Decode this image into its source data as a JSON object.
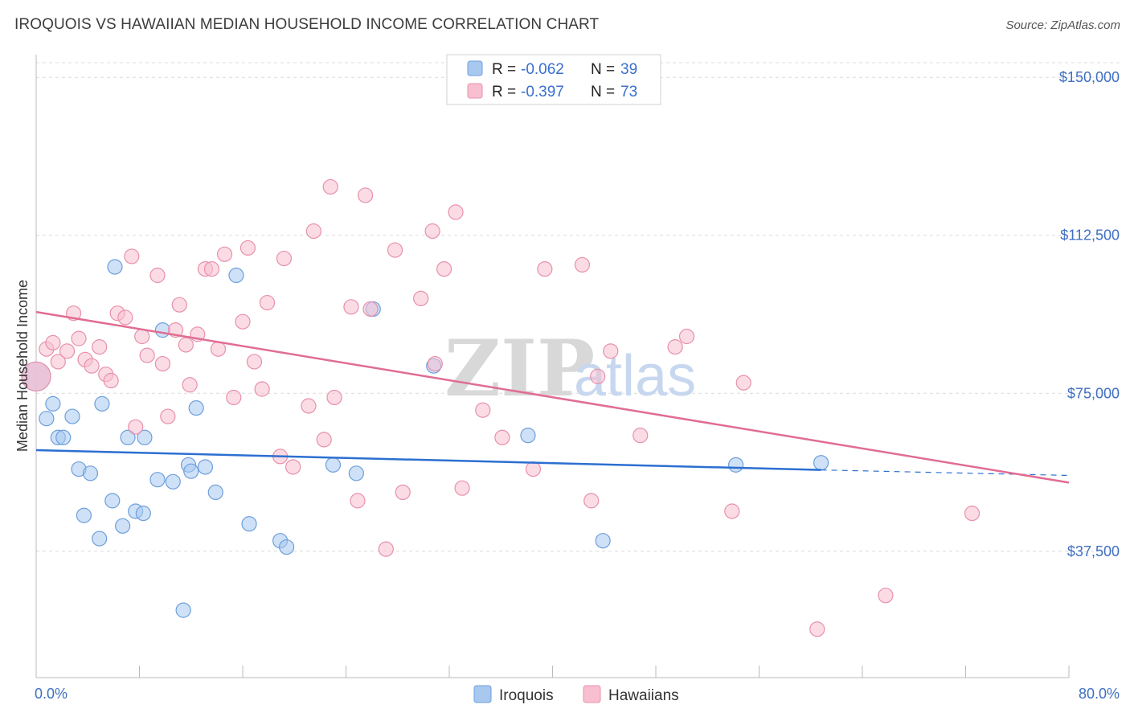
{
  "header": {
    "title": "IROQUOIS VS HAWAIIAN MEDIAN HOUSEHOLD INCOME CORRELATION CHART",
    "source": "Source: ZipAtlas.com"
  },
  "watermark": {
    "zip": "ZIP",
    "atlas": "atlas"
  },
  "colors": {
    "iroquois_fill": "#a8c8f0",
    "iroquois_stroke": "#6d9fdc",
    "iroquois_line": "#2c6fd1",
    "hawaiians_fill": "#f8bfd0",
    "hawaiians_stroke": "#e890ab",
    "hawaiians_line": "#e06d93",
    "axis_label": "#3f6fc0",
    "grid": "#dcdcdc"
  },
  "legend": {
    "rows": [
      {
        "r_label": "R = ",
        "r_value": "-0.062",
        "n_label": "N = ",
        "n_value": "39"
      },
      {
        "r_label": "R = ",
        "r_value": "-0.397",
        "n_label": "N = ",
        "n_value": "73"
      }
    ]
  },
  "chart_data": {
    "type": "scatter",
    "title": "IROQUOIS VS HAWAIIAN MEDIAN HOUSEHOLD INCOME CORRELATION CHART",
    "xlabel": "",
    "ylabel": "Median Household Income",
    "xlim": [
      0,
      80
    ],
    "ylim": [
      7500,
      155000
    ],
    "x_tick_labels": [
      "0.0%",
      "80.0%"
    ],
    "y_ticks": [
      37500,
      75000,
      112500,
      150000
    ],
    "y_tick_labels": [
      "$37,500",
      "$75,000",
      "$112,500",
      "$150,000"
    ],
    "grid": true,
    "legend_position": "top-center",
    "series": [
      {
        "name": "Iroquois",
        "r": -0.062,
        "n": 39,
        "trend": {
          "x": [
            0,
            60.8
          ],
          "y": [
            61500,
            56800
          ],
          "dashed_to": [
            80,
            55500
          ]
        },
        "points": [
          [
            0.0,
            79000
          ],
          [
            0.8,
            69000
          ],
          [
            1.3,
            72500
          ],
          [
            1.7,
            64500
          ],
          [
            2.1,
            64500
          ],
          [
            2.8,
            69500
          ],
          [
            3.3,
            57000
          ],
          [
            3.7,
            46000
          ],
          [
            4.2,
            56000
          ],
          [
            4.9,
            40500
          ],
          [
            5.1,
            72500
          ],
          [
            5.9,
            49500
          ],
          [
            6.1,
            105000
          ],
          [
            6.7,
            43500
          ],
          [
            7.1,
            64500
          ],
          [
            7.7,
            47000
          ],
          [
            8.3,
            46500
          ],
          [
            8.4,
            64500
          ],
          [
            9.4,
            54500
          ],
          [
            9.8,
            90000
          ],
          [
            10.6,
            54000
          ],
          [
            11.4,
            23500
          ],
          [
            11.8,
            58000
          ],
          [
            12.0,
            56500
          ],
          [
            12.4,
            71500
          ],
          [
            13.1,
            57500
          ],
          [
            13.9,
            51500
          ],
          [
            15.5,
            103000
          ],
          [
            16.5,
            44000
          ],
          [
            18.9,
            40000
          ],
          [
            19.4,
            38500
          ],
          [
            23.0,
            58000
          ],
          [
            24.8,
            56000
          ],
          [
            26.1,
            95000
          ],
          [
            30.8,
            81500
          ],
          [
            38.1,
            65000
          ],
          [
            43.9,
            40000
          ],
          [
            54.2,
            58000
          ],
          [
            60.8,
            58500
          ]
        ]
      },
      {
        "name": "Hawaiians",
        "r": -0.397,
        "n": 73,
        "trend": {
          "x": [
            0,
            80
          ],
          "y": [
            94300,
            53800
          ]
        },
        "points": [
          [
            0.0,
            79000
          ],
          [
            0.8,
            85500
          ],
          [
            1.3,
            87000
          ],
          [
            1.7,
            82500
          ],
          [
            2.4,
            85000
          ],
          [
            2.9,
            94000
          ],
          [
            3.3,
            88000
          ],
          [
            3.8,
            83000
          ],
          [
            4.3,
            81500
          ],
          [
            4.9,
            86000
          ],
          [
            5.4,
            79500
          ],
          [
            5.8,
            78000
          ],
          [
            6.3,
            94000
          ],
          [
            6.9,
            93000
          ],
          [
            7.4,
            107500
          ],
          [
            7.7,
            67000
          ],
          [
            8.2,
            88500
          ],
          [
            8.6,
            84000
          ],
          [
            9.4,
            103000
          ],
          [
            9.8,
            82000
          ],
          [
            10.2,
            69500
          ],
          [
            10.8,
            90000
          ],
          [
            11.1,
            96000
          ],
          [
            11.6,
            86500
          ],
          [
            11.9,
            77000
          ],
          [
            12.5,
            89000
          ],
          [
            13.1,
            104500
          ],
          [
            13.6,
            104500
          ],
          [
            14.1,
            85500
          ],
          [
            14.6,
            108000
          ],
          [
            15.3,
            74000
          ],
          [
            16.0,
            92000
          ],
          [
            16.4,
            109500
          ],
          [
            16.9,
            82500
          ],
          [
            17.5,
            76000
          ],
          [
            17.9,
            96500
          ],
          [
            18.9,
            60000
          ],
          [
            19.2,
            107000
          ],
          [
            19.9,
            57500
          ],
          [
            21.1,
            72000
          ],
          [
            21.5,
            113500
          ],
          [
            22.3,
            64000
          ],
          [
            22.8,
            124000
          ],
          [
            23.1,
            74000
          ],
          [
            24.4,
            95500
          ],
          [
            24.9,
            49500
          ],
          [
            25.5,
            122000
          ],
          [
            25.9,
            95000
          ],
          [
            27.1,
            38000
          ],
          [
            27.8,
            109000
          ],
          [
            28.4,
            51500
          ],
          [
            29.8,
            97500
          ],
          [
            30.7,
            113500
          ],
          [
            30.9,
            82000
          ],
          [
            31.6,
            104500
          ],
          [
            32.5,
            118000
          ],
          [
            33.0,
            52500
          ],
          [
            34.6,
            71000
          ],
          [
            36.1,
            64500
          ],
          [
            38.5,
            57000
          ],
          [
            39.4,
            104500
          ],
          [
            42.3,
            105500
          ],
          [
            43.0,
            49500
          ],
          [
            43.5,
            79000
          ],
          [
            44.5,
            85000
          ],
          [
            46.8,
            65000
          ],
          [
            49.5,
            86000
          ],
          [
            50.4,
            88500
          ],
          [
            53.9,
            47000
          ],
          [
            54.8,
            77500
          ],
          [
            60.5,
            19000
          ],
          [
            65.8,
            27000
          ],
          [
            72.5,
            46500
          ]
        ]
      }
    ]
  },
  "bottom_legend": [
    "Iroquois",
    "Hawaiians"
  ]
}
